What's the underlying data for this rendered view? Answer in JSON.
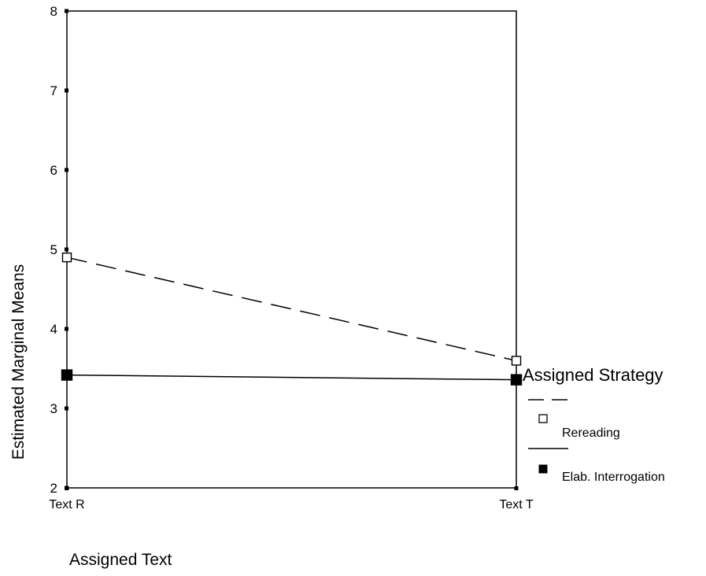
{
  "chart_data": {
    "type": "line",
    "title": "",
    "xlabel": "Assigned Text",
    "ylabel": "Estimated Marginal Means",
    "categories": [
      "Text R",
      "Text T"
    ],
    "ylim": [
      2,
      8
    ],
    "yticks": [
      "2",
      "3",
      "4",
      "5",
      "6",
      "7",
      "8"
    ],
    "grid": false,
    "legend": {
      "title": "Assigned Strategy",
      "placement": "right",
      "entries": [
        {
          "label": "Rereading",
          "line": "dashed",
          "marker": "hollow-square"
        },
        {
          "label": "Elab. Interrogation",
          "line": "solid",
          "marker": "filled-square"
        }
      ]
    },
    "series": [
      {
        "name": "Rereading",
        "values": [
          4.9,
          3.6
        ],
        "line": "dashed",
        "marker": "hollow-square",
        "color": "#000000"
      },
      {
        "name": "Elab. Interrogation",
        "values": [
          3.42,
          3.36
        ],
        "line": "solid",
        "marker": "filled-square",
        "color": "#000000"
      }
    ]
  }
}
